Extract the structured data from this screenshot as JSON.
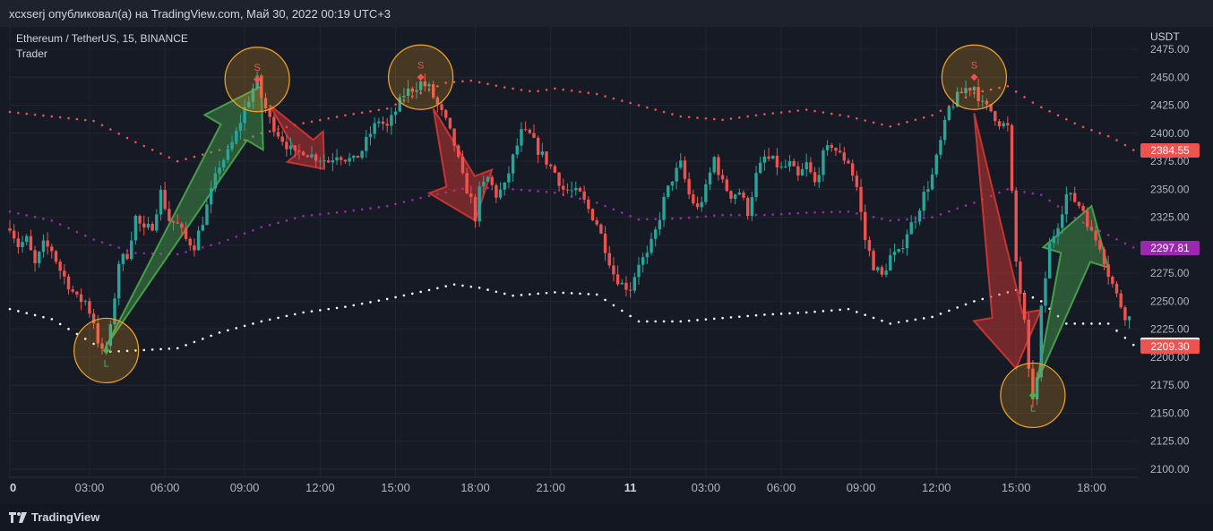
{
  "attribution": "xcxserj опубликовал(а) на TradingView.com, Май 30, 2022 00:19 UTC+3",
  "legend": {
    "symbol": "Ethereum / TetherUS, 15, BINANCE",
    "indicator": "Trader"
  },
  "branding": {
    "logo": "TradingView"
  },
  "colors": {
    "background": "#161a25",
    "grid": "#222631",
    "up": "#26a69a",
    "down": "#ef5350",
    "upper_band": "#ef5350",
    "mid_band": "#9c27b0",
    "lower_band": "#ffffff",
    "circle": "#f5a623"
  },
  "chart_data": {
    "type": "candlestick",
    "currency_label": "USDT",
    "y_ticks": [
      "2475.00",
      "2450.00",
      "2425.00",
      "2400.00",
      "2375.00",
      "2350.00",
      "2325.00",
      "2300.00",
      "2275.00",
      "2250.00",
      "2225.00",
      "2200.00",
      "2175.00",
      "2150.00",
      "2125.00",
      "2100.00"
    ],
    "ylim": [
      2095,
      2480
    ],
    "x_ticks": [
      "0",
      "03:00",
      "06:00",
      "09:00",
      "12:00",
      "15:00",
      "18:00",
      "21:00",
      "11",
      "03:00",
      "06:00",
      "09:00",
      "12:00",
      "15:00",
      "18:00"
    ],
    "price_tags": [
      {
        "label": "2384.55",
        "value": 2384.55,
        "color": "#ef5350"
      },
      {
        "label": "2297.81",
        "value": 2297.81,
        "color": "#9c27b0"
      },
      {
        "label": "2211.07",
        "value": 2211.07,
        "color": "#ffffff"
      },
      {
        "label": "2209.30",
        "value": 2209.3,
        "color": "#ef5350"
      }
    ],
    "close_anchors": [
      [
        0,
        2318
      ],
      [
        2,
        2300
      ],
      [
        4,
        2305
      ],
      [
        6,
        2282
      ],
      [
        8,
        2300
      ],
      [
        10,
        2296
      ],
      [
        12,
        2278
      ],
      [
        14,
        2265
      ],
      [
        16,
        2252
      ],
      [
        18,
        2250
      ],
      [
        20,
        2232
      ],
      [
        21,
        2215
      ],
      [
        22,
        2204
      ],
      [
        23,
        2210
      ],
      [
        24,
        2225
      ],
      [
        26,
        2285
      ],
      [
        28,
        2292
      ],
      [
        30,
        2325
      ],
      [
        32,
        2312
      ],
      [
        34,
        2318
      ],
      [
        36,
        2347
      ],
      [
        38,
        2323
      ],
      [
        40,
        2318
      ],
      [
        42,
        2305
      ],
      [
        44,
        2300
      ],
      [
        46,
        2322
      ],
      [
        48,
        2347
      ],
      [
        50,
        2372
      ],
      [
        52,
        2382
      ],
      [
        54,
        2400
      ],
      [
        56,
        2422
      ],
      [
        58,
        2440
      ],
      [
        59,
        2447
      ],
      [
        60,
        2432
      ],
      [
        62,
        2412
      ],
      [
        64,
        2400
      ],
      [
        66,
        2390
      ],
      [
        68,
        2380
      ],
      [
        70,
        2385
      ],
      [
        72,
        2380
      ],
      [
        74,
        2378
      ],
      [
        76,
        2375
      ],
      [
        78,
        2382
      ],
      [
        80,
        2378
      ],
      [
        82,
        2375
      ],
      [
        84,
        2385
      ],
      [
        86,
        2400
      ],
      [
        88,
        2412
      ],
      [
        90,
        2405
      ],
      [
        92,
        2420
      ],
      [
        94,
        2435
      ],
      [
        96,
        2440
      ],
      [
        98,
        2445
      ],
      [
        100,
        2440
      ],
      [
        102,
        2425
      ],
      [
        104,
        2410
      ],
      [
        106,
        2390
      ],
      [
        108,
        2360
      ],
      [
        110,
        2340
      ],
      [
        111,
        2325
      ],
      [
        112,
        2348
      ],
      [
        114,
        2360
      ],
      [
        116,
        2345
      ],
      [
        118,
        2352
      ],
      [
        120,
        2378
      ],
      [
        122,
        2400
      ],
      [
        124,
        2398
      ],
      [
        126,
        2385
      ],
      [
        128,
        2375
      ],
      [
        130,
        2365
      ],
      [
        132,
        2350
      ],
      [
        134,
        2348
      ],
      [
        136,
        2345
      ],
      [
        138,
        2332
      ],
      [
        140,
        2320
      ],
      [
        142,
        2298
      ],
      [
        144,
        2275
      ],
      [
        146,
        2265
      ],
      [
        148,
        2262
      ],
      [
        150,
        2285
      ],
      [
        152,
        2290
      ],
      [
        154,
        2312
      ],
      [
        156,
        2340
      ],
      [
        158,
        2360
      ],
      [
        160,
        2372
      ],
      [
        162,
        2345
      ],
      [
        164,
        2332
      ],
      [
        166,
        2350
      ],
      [
        168,
        2378
      ],
      [
        170,
        2355
      ],
      [
        172,
        2345
      ],
      [
        174,
        2348
      ],
      [
        176,
        2330
      ],
      [
        178,
        2362
      ],
      [
        180,
        2378
      ],
      [
        182,
        2375
      ],
      [
        184,
        2368
      ],
      [
        186,
        2372
      ],
      [
        188,
        2360
      ],
      [
        190,
        2372
      ],
      [
        192,
        2355
      ],
      [
        194,
        2380
      ],
      [
        196,
        2390
      ],
      [
        198,
        2380
      ],
      [
        200,
        2375
      ],
      [
        202,
        2352
      ],
      [
        204,
        2305
      ],
      [
        206,
        2282
      ],
      [
        208,
        2272
      ],
      [
        210,
        2290
      ],
      [
        212,
        2292
      ],
      [
        214,
        2312
      ],
      [
        216,
        2325
      ],
      [
        218,
        2345
      ],
      [
        220,
        2362
      ],
      [
        222,
        2392
      ],
      [
        224,
        2422
      ],
      [
        226,
        2432
      ],
      [
        228,
        2440
      ],
      [
        230,
        2442
      ],
      [
        232,
        2425
      ],
      [
        234,
        2420
      ],
      [
        236,
        2410
      ],
      [
        238,
        2405
      ],
      [
        240,
        2285
      ],
      [
        242,
        2230
      ],
      [
        243,
        2185
      ],
      [
        244,
        2165
      ],
      [
        245,
        2180
      ],
      [
        246,
        2242
      ],
      [
        248,
        2300
      ],
      [
        250,
        2320
      ],
      [
        252,
        2345
      ],
      [
        254,
        2340
      ],
      [
        256,
        2332
      ],
      [
        258,
        2310
      ],
      [
        260,
        2300
      ],
      [
        262,
        2275
      ],
      [
        264,
        2255
      ],
      [
        266,
        2238
      ],
      [
        267,
        2235
      ]
    ],
    "bands": {
      "upper": [
        [
          0,
          2419
        ],
        [
          20,
          2411
        ],
        [
          30,
          2392
        ],
        [
          40,
          2375
        ],
        [
          50,
          2385
        ],
        [
          60,
          2400
        ],
        [
          70,
          2409
        ],
        [
          80,
          2416
        ],
        [
          90,
          2422
        ],
        [
          96,
          2433
        ],
        [
          104,
          2445
        ],
        [
          110,
          2447
        ],
        [
          118,
          2441
        ],
        [
          125,
          2437
        ],
        [
          130,
          2440
        ],
        [
          140,
          2435
        ],
        [
          150,
          2425
        ],
        [
          160,
          2415
        ],
        [
          170,
          2412
        ],
        [
          180,
          2417
        ],
        [
          190,
          2421
        ],
        [
          200,
          2415
        ],
        [
          210,
          2406
        ],
        [
          220,
          2416
        ],
        [
          230,
          2436
        ],
        [
          238,
          2442
        ],
        [
          245,
          2425
        ],
        [
          255,
          2407
        ],
        [
          263,
          2396
        ],
        [
          268,
          2385
        ]
      ],
      "mid": [
        [
          0,
          2330
        ],
        [
          10,
          2322
        ],
        [
          20,
          2305
        ],
        [
          30,
          2293
        ],
        [
          40,
          2292
        ],
        [
          50,
          2302
        ],
        [
          60,
          2316
        ],
        [
          70,
          2326
        ],
        [
          80,
          2330
        ],
        [
          90,
          2335
        ],
        [
          100,
          2344
        ],
        [
          110,
          2352
        ],
        [
          120,
          2350
        ],
        [
          130,
          2347
        ],
        [
          140,
          2338
        ],
        [
          150,
          2323
        ],
        [
          160,
          2324
        ],
        [
          170,
          2327
        ],
        [
          180,
          2327
        ],
        [
          190,
          2329
        ],
        [
          200,
          2330
        ],
        [
          210,
          2322
        ],
        [
          220,
          2325
        ],
        [
          230,
          2338
        ],
        [
          238,
          2350
        ],
        [
          246,
          2345
        ],
        [
          255,
          2322
        ],
        [
          268,
          2298
        ]
      ],
      "lower": [
        [
          0,
          2243
        ],
        [
          10,
          2234
        ],
        [
          20,
          2212
        ],
        [
          24,
          2205
        ],
        [
          30,
          2206
        ],
        [
          40,
          2208
        ],
        [
          50,
          2222
        ],
        [
          60,
          2232
        ],
        [
          70,
          2240
        ],
        [
          80,
          2245
        ],
        [
          90,
          2252
        ],
        [
          100,
          2260
        ],
        [
          106,
          2265
        ],
        [
          112,
          2262
        ],
        [
          120,
          2255
        ],
        [
          130,
          2258
        ],
        [
          140,
          2256
        ],
        [
          150,
          2232
        ],
        [
          160,
          2232
        ],
        [
          170,
          2235
        ],
        [
          180,
          2238
        ],
        [
          190,
          2240
        ],
        [
          200,
          2243
        ],
        [
          210,
          2230
        ],
        [
          220,
          2236
        ],
        [
          230,
          2250
        ],
        [
          240,
          2260
        ],
        [
          246,
          2250
        ],
        [
          252,
          2230
        ],
        [
          262,
          2230
        ],
        [
          268,
          2211
        ]
      ]
    },
    "annotations": [
      {
        "type": "signal",
        "label": "L",
        "direction": "long",
        "bar": 23,
        "value": 2206
      },
      {
        "type": "signal",
        "label": "S",
        "direction": "short",
        "bar": 59,
        "value": 2448
      },
      {
        "type": "signal",
        "label": "S",
        "direction": "short",
        "bar": 98,
        "value": 2450
      },
      {
        "type": "signal",
        "label": "S",
        "direction": "short",
        "bar": 230,
        "value": 2450
      },
      {
        "type": "signal",
        "label": "L",
        "direction": "long",
        "bar": 244,
        "value": 2166
      }
    ],
    "arrows": [
      {
        "direction": "up",
        "color": "green",
        "from": [
          23,
          2210
        ],
        "to": [
          60,
          2442
        ]
      },
      {
        "direction": "down",
        "color": "red",
        "from": [
          62,
          2425
        ],
        "to": [
          75,
          2368
        ]
      },
      {
        "direction": "down",
        "color": "red",
        "from": [
          101,
          2422
        ],
        "to": [
          111,
          2322
        ]
      },
      {
        "direction": "down",
        "color": "red",
        "from": [
          230,
          2418
        ],
        "to": [
          240,
          2190
        ]
      },
      {
        "direction": "up",
        "color": "green",
        "from": [
          245,
          2178
        ],
        "to": [
          258,
          2335
        ]
      }
    ]
  }
}
